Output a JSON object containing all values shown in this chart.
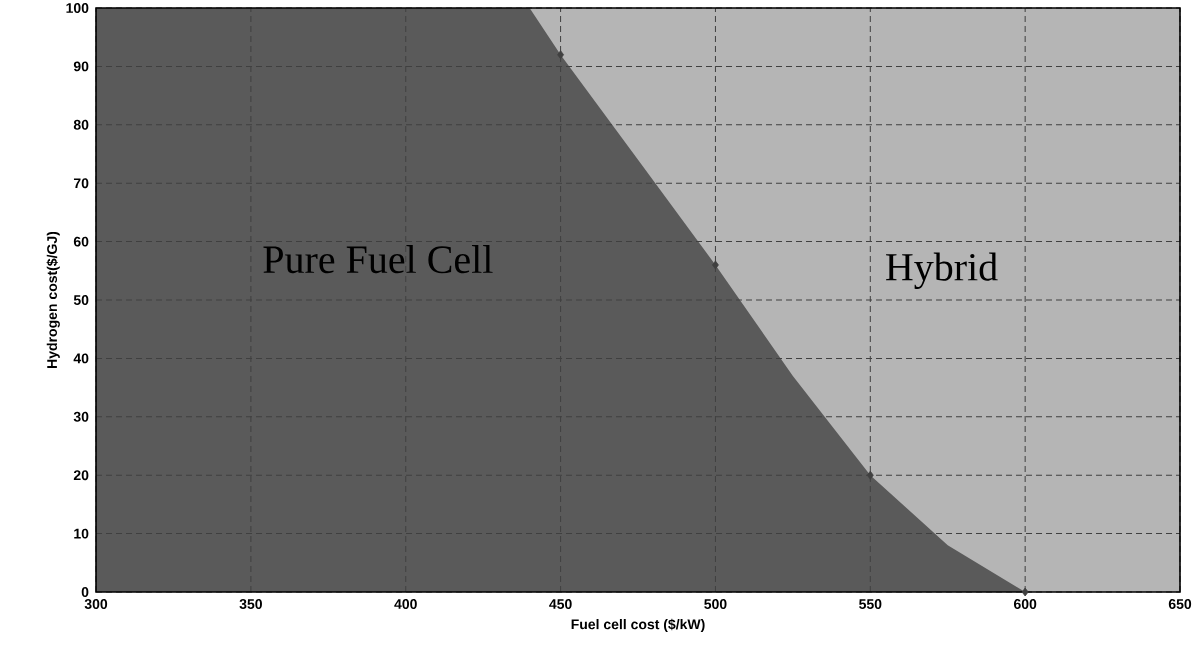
{
  "chart_data": {
    "type": "area",
    "xlabel": "Fuel cell cost ($/kW)",
    "ylabel": "Hydrogen cost($/GJ)",
    "x": [
      300,
      440,
      450,
      475,
      500,
      525,
      550,
      575,
      600,
      650
    ],
    "series": [
      {
        "color": "#5a5a5a",
        "values": [
          100,
          100,
          92,
          74,
          56,
          37,
          20,
          8,
          0,
          0
        ]
      },
      {
        "type": "scatter",
        "color": "#404040",
        "marker": "diamond",
        "x": [
          450,
          500,
          550,
          600
        ],
        "values": [
          92,
          56,
          20,
          0
        ]
      }
    ],
    "annotations": [
      "Pure  Fuel  Cell",
      "Hybrid"
    ],
    "xlim": [
      300,
      650
    ],
    "ylim": [
      0,
      100
    ],
    "xticks": [
      300,
      350,
      400,
      450,
      500,
      550,
      600,
      650
    ],
    "yticks": [
      0,
      10,
      20,
      30,
      40,
      50,
      60,
      70,
      80,
      90,
      100
    ],
    "grid": true
  }
}
